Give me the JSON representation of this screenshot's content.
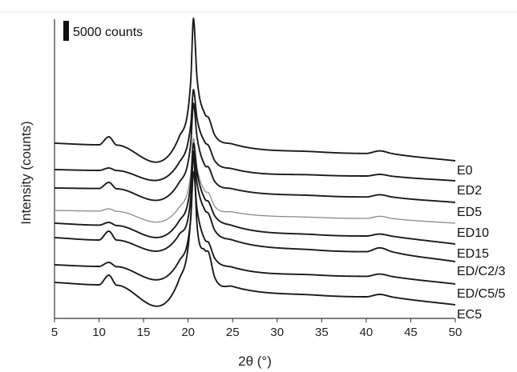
{
  "chart_data": {
    "type": "line",
    "title": "",
    "xlabel": "2θ (°)",
    "ylabel": "Intensity (counts)",
    "xlim": [
      5,
      50
    ],
    "x_ticks": [
      5,
      10,
      15,
      20,
      25,
      30,
      35,
      40,
      45,
      50
    ],
    "y_ticks_shown": false,
    "grid": false,
    "stacked_offset": true,
    "legend": "labels at right end of each curve",
    "scale_bar_label": "5000 counts",
    "colors": {
      "axis": "#333333",
      "default_series": "#1a1a1a",
      "ED10": "#8a8a8a"
    },
    "series": [
      {
        "name": "E0",
        "baseline": 9000,
        "points": [
          [
            5,
            1100
          ],
          [
            10,
            1000
          ],
          [
            11.1,
            1500
          ],
          [
            12,
            980
          ],
          [
            19,
            1500
          ],
          [
            20.3,
            5000
          ],
          [
            20.6,
            8900
          ],
          [
            21.0,
            5200
          ],
          [
            21.9,
            2900
          ],
          [
            22.3,
            2700
          ],
          [
            23,
            1600
          ],
          [
            25,
            1050
          ],
          [
            34.5,
            560
          ],
          [
            40,
            460
          ],
          [
            41.5,
            620
          ],
          [
            43,
            440
          ],
          [
            50,
            0
          ]
        ]
      },
      {
        "name": "ED2",
        "baseline": 7750,
        "points": [
          [
            5,
            700
          ],
          [
            10,
            650
          ],
          [
            11.1,
            800
          ],
          [
            12,
            640
          ],
          [
            19,
            1150
          ],
          [
            20.3,
            3500
          ],
          [
            20.6,
            5700
          ],
          [
            21.0,
            3900
          ],
          [
            21.9,
            2400
          ],
          [
            22.3,
            2200
          ],
          [
            23,
            1250
          ],
          [
            25,
            750
          ],
          [
            34.5,
            360
          ],
          [
            40,
            300
          ],
          [
            41.5,
            400
          ],
          [
            43,
            280
          ],
          [
            50,
            0
          ]
        ]
      },
      {
        "name": "ED5",
        "baseline": 6400,
        "points": [
          [
            5,
            900
          ],
          [
            10,
            870
          ],
          [
            11.1,
            1250
          ],
          [
            12,
            850
          ],
          [
            19,
            1250
          ],
          [
            20.3,
            3700
          ],
          [
            20.6,
            6200
          ],
          [
            21.0,
            4100
          ],
          [
            21.9,
            2300
          ],
          [
            22.3,
            2200
          ],
          [
            23,
            1300
          ],
          [
            25,
            850
          ],
          [
            34.5,
            420
          ],
          [
            40,
            340
          ],
          [
            41.5,
            480
          ],
          [
            43,
            330
          ],
          [
            50,
            0
          ]
        ]
      },
      {
        "name": "ED10",
        "baseline": 5100,
        "points": [
          [
            5,
            800
          ],
          [
            10,
            760
          ],
          [
            11.1,
            900
          ],
          [
            12,
            740
          ],
          [
            19,
            1000
          ],
          [
            20.3,
            3100
          ],
          [
            20.6,
            5300
          ],
          [
            21.0,
            3500
          ],
          [
            21.9,
            2000
          ],
          [
            22.3,
            1900
          ],
          [
            23,
            1050
          ],
          [
            25,
            700
          ],
          [
            34.5,
            360
          ],
          [
            40,
            300
          ],
          [
            41.5,
            430
          ],
          [
            43,
            290
          ],
          [
            50,
            0
          ]
        ]
      },
      {
        "name": "ED15",
        "baseline": 3800,
        "points": [
          [
            5,
            1300
          ],
          [
            10,
            1180
          ],
          [
            11.1,
            1350
          ],
          [
            12,
            1150
          ],
          [
            19,
            1450
          ],
          [
            20.3,
            3800
          ],
          [
            20.6,
            6300
          ],
          [
            21.0,
            4500
          ],
          [
            21.9,
            2800
          ],
          [
            22.3,
            2650
          ],
          [
            23,
            1750
          ],
          [
            25,
            1150
          ],
          [
            34.5,
            580
          ],
          [
            40,
            500
          ],
          [
            41.5,
            620
          ],
          [
            43,
            480
          ],
          [
            50,
            0
          ]
        ]
      },
      {
        "name": "ED/C2/3",
        "baseline": 2700,
        "points": [
          [
            5,
            1500
          ],
          [
            10,
            1350
          ],
          [
            11.1,
            1900
          ],
          [
            12,
            1340
          ],
          [
            19,
            1700
          ],
          [
            20.3,
            4000
          ],
          [
            20.6,
            6900
          ],
          [
            21.0,
            4900
          ],
          [
            21.9,
            3200
          ],
          [
            22.3,
            3000
          ],
          [
            23,
            1950
          ],
          [
            25,
            1350
          ],
          [
            34.5,
            720
          ],
          [
            40,
            620
          ],
          [
            41.5,
            860
          ],
          [
            43,
            600
          ],
          [
            50,
            0
          ]
        ]
      },
      {
        "name": "ED/C5/5",
        "baseline": 1300,
        "points": [
          [
            5,
            1200
          ],
          [
            10,
            1100
          ],
          [
            11.1,
            1350
          ],
          [
            12,
            1080
          ],
          [
            19,
            1450
          ],
          [
            20.3,
            4100
          ],
          [
            20.6,
            7000
          ],
          [
            21.0,
            4700
          ],
          [
            21.9,
            2750
          ],
          [
            22.3,
            2600
          ],
          [
            23,
            1600
          ],
          [
            25,
            1050
          ],
          [
            34.5,
            560
          ],
          [
            40,
            480
          ],
          [
            41.5,
            620
          ],
          [
            43,
            460
          ],
          [
            50,
            0
          ]
        ]
      },
      {
        "name": "EC5",
        "baseline": 0,
        "points": [
          [
            5,
            1400
          ],
          [
            10,
            1250
          ],
          [
            11.1,
            1850
          ],
          [
            12,
            1220
          ],
          [
            19,
            1600
          ],
          [
            20.3,
            5500
          ],
          [
            20.6,
            9500
          ],
          [
            21.0,
            5000
          ],
          [
            21.9,
            3400
          ],
          [
            22.3,
            3300
          ],
          [
            23,
            1700
          ],
          [
            25,
            1150
          ],
          [
            34.5,
            600
          ],
          [
            40,
            500
          ],
          [
            41.5,
            650
          ],
          [
            43,
            480
          ],
          [
            50,
            0
          ]
        ]
      }
    ]
  }
}
